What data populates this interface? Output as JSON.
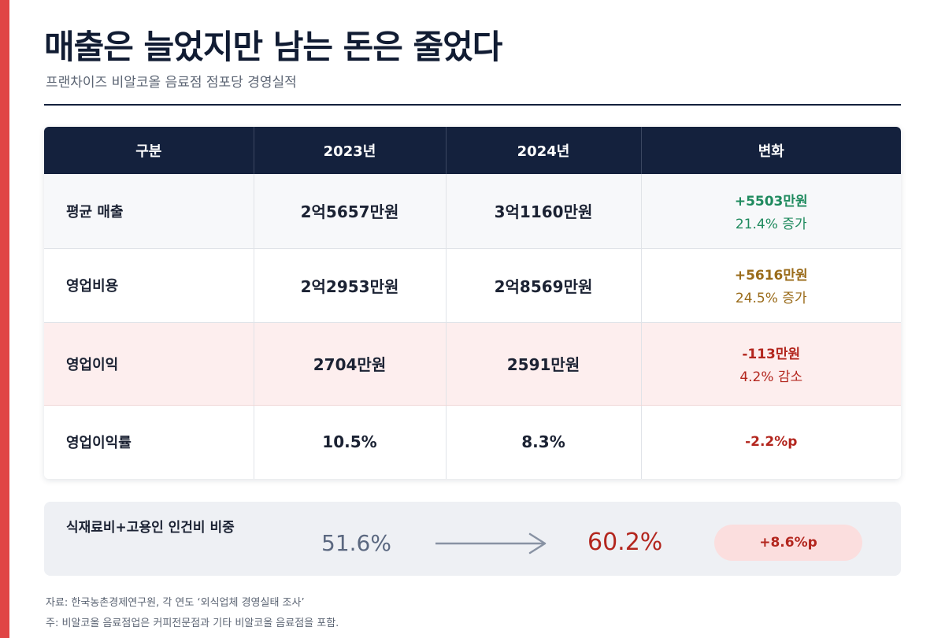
{
  "title": "매출은 늘었지만 남는 돈은 줄었다",
  "subtitle": "프랜차이즈 비알코올 음료점 점포당 경영실적",
  "colors": {
    "accent": "#e04545",
    "header_bg": "#14213d",
    "increase": "#1f8a5e",
    "cost": "#9a6b1a",
    "decrease": "#b3261e"
  },
  "table": {
    "headers": [
      "구분",
      "2023년",
      "2024년",
      "변화"
    ],
    "rows": [
      {
        "label": "평균 매출",
        "y2023": "2억5657만원",
        "y2024": "3억1160만원",
        "change": "+5503만원",
        "change_sub": "21.4% 증가"
      },
      {
        "label": "영업비용",
        "y2023": "2억2953만원",
        "y2024": "2억8569만원",
        "change": "+5616만원",
        "change_sub": "24.5% 증가"
      },
      {
        "label": "영업이익",
        "y2023": "2704만원",
        "y2024": "2591만원",
        "change": "-113만원",
        "change_sub": "4.2% 감소"
      },
      {
        "label": "영업이익률",
        "y2023": "10.5%",
        "y2024": "8.3%",
        "change": "-2.2%p"
      }
    ]
  },
  "ratio": {
    "label": "식재료비+고용인 인건비 비중",
    "from": "51.6%",
    "to": "60.2%",
    "change": "+8.6%p"
  },
  "notes": {
    "source": "자료: 한국농촌경제연구원, 각 연도 ‘외식업체 경영실태 조사’",
    "footnote": "주: 비알코올 음료점업은 커피전문점과 기타 비알코올 음료점을 포함."
  }
}
